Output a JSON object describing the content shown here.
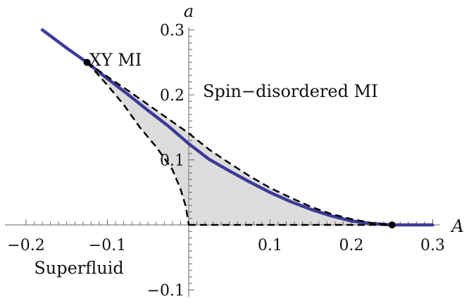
{
  "chart_data": {
    "type": "line",
    "xlabel": "A",
    "ylabel": "a",
    "xlim": [
      -0.2,
      0.3
    ],
    "ylim": [
      -0.1,
      0.3
    ],
    "x_ticks": [
      {
        "value": -0.2,
        "label": "−0.2"
      },
      {
        "value": -0.1,
        "label": "−0.1"
      },
      {
        "value": 0.1,
        "label": "0.1"
      },
      {
        "value": 0.2,
        "label": "0.2"
      },
      {
        "value": 0.3,
        "label": "0.3"
      }
    ],
    "y_ticks": [
      {
        "value": -0.1,
        "label": "−0.1"
      },
      {
        "value": 0.1,
        "label": "0.1"
      },
      {
        "value": 0.2,
        "label": "0.2"
      },
      {
        "value": 0.3,
        "label": "0.3"
      }
    ],
    "grid": false,
    "legend": "none",
    "region_labels": [
      {
        "text": "XY MI",
        "x": -0.09,
        "y": 0.245
      },
      {
        "text": "Spin−disordered MI",
        "x": 0.125,
        "y": 0.197
      },
      {
        "text": "Superfluid",
        "x": -0.135,
        "y": -0.075
      }
    ],
    "series": [
      {
        "style": "solid-thick",
        "color": "#3d3a99",
        "x": [
          -0.18,
          -0.15,
          -0.125,
          -0.1,
          -0.075,
          -0.05,
          -0.025,
          0.0,
          0.025,
          0.05,
          0.075,
          0.1,
          0.125,
          0.15,
          0.175,
          0.2,
          0.225,
          0.25,
          0.28,
          0.3
        ],
        "y": [
          0.3,
          0.272,
          0.25,
          0.225,
          0.201,
          0.176,
          0.152,
          0.125,
          0.101,
          0.083,
          0.066,
          0.05,
          0.036,
          0.024,
          0.014,
          0.006,
          0.002,
          0.0,
          0.0,
          0.0
        ]
      },
      {
        "style": "dashed-upper",
        "color": "#000000",
        "x": [
          -0.125,
          -0.1,
          -0.075,
          -0.05,
          -0.025,
          0.0,
          0.025,
          0.05,
          0.075,
          0.1,
          0.125,
          0.15,
          0.175,
          0.2,
          0.225,
          0.25
        ],
        "y": [
          0.25,
          0.228,
          0.207,
          0.185,
          0.163,
          0.141,
          0.116,
          0.095,
          0.075,
          0.057,
          0.042,
          0.028,
          0.017,
          0.009,
          0.003,
          0.0
        ]
      },
      {
        "style": "dashed-lower",
        "color": "#000000",
        "x": [
          -0.125,
          -0.1,
          -0.08,
          -0.06,
          -0.04,
          -0.02,
          -0.01,
          -0.004,
          -0.001,
          0.0
        ],
        "y": [
          0.25,
          0.215,
          0.185,
          0.15,
          0.12,
          0.085,
          0.055,
          0.03,
          0.01,
          0.0
        ]
      },
      {
        "style": "dashed-baseline",
        "color": "#000000",
        "x": [
          0.0,
          0.25
        ],
        "y": [
          0.0,
          0.0
        ]
      }
    ],
    "points": [
      {
        "x": -0.125,
        "y": 0.25
      },
      {
        "x": 0.25,
        "y": 0.0
      }
    ]
  }
}
